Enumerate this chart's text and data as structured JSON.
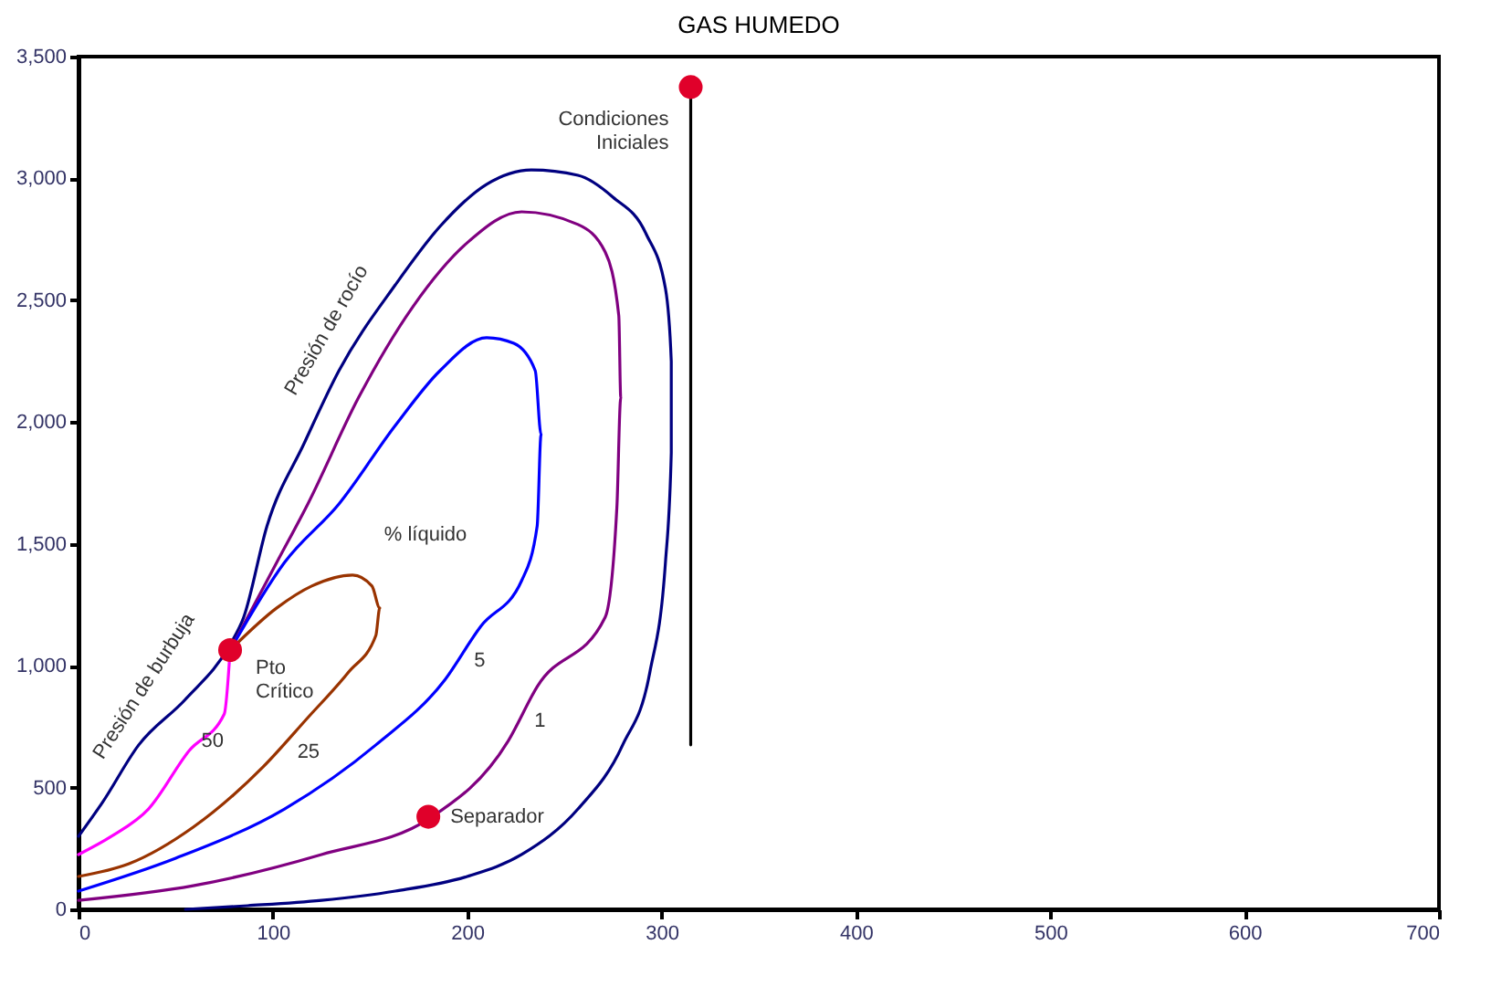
{
  "chart_data": {
    "type": "line",
    "title": "GAS HUMEDO",
    "xlim": [
      0,
      700
    ],
    "xticks": [
      0,
      100,
      200,
      300,
      400,
      500,
      600,
      700
    ],
    "ylim": [
      0,
      3500
    ],
    "yticks": [
      0,
      {
        "value": 500,
        "label": "500"
      },
      {
        "value": 1000,
        "label": "1,000"
      },
      {
        "value": 1500,
        "label": "1,500"
      },
      {
        "value": 2000,
        "label": "2,000"
      },
      {
        "value": 2500,
        "label": "2,500"
      },
      {
        "value": 3000,
        "label": "3,000"
      },
      {
        "value": 3500,
        "label": "3,500"
      }
    ],
    "grid": false,
    "line_style": "solid",
    "series": [
      {
        "type": "line",
        "color": "#000080",
        "marker": "none",
        "x": [
          0,
          12,
          31,
          55,
          78,
          85,
          97,
          116,
          134,
          163,
          186,
          210,
          233,
          257,
          275,
          292,
          302,
          305,
          305,
          302,
          294,
          280,
          257,
          228,
          200,
          163,
          125,
          87,
          55
        ],
        "values": [
          300,
          435,
          675,
          862,
          1087,
          1199,
          1574,
          1911,
          2211,
          2563,
          2803,
          2976,
          3035,
          3013,
          2923,
          2773,
          2548,
          2249,
          1874,
          1424,
          974,
          675,
          412,
          225,
          135,
          75,
          37,
          15,
          0
        ]
      },
      {
        "type": "line",
        "color": "#800080",
        "marker": "none",
        "x": [
          78,
          102,
          118,
          144,
          172,
          200,
          228,
          257,
          271,
          278,
          279,
          277,
          271,
          236,
          221,
          181,
          125,
          59,
          0
        ],
        "values": [
          1064,
          1424,
          1664,
          2099,
          2473,
          2736,
          2863,
          2811,
          2698,
          2436,
          2099,
          1649,
          1199,
          914,
          690,
          375,
          225,
          97,
          37
        ]
      },
      {
        "type": "line",
        "color": "#0000ff",
        "marker": "none",
        "x": [
          78,
          106,
          134,
          163,
          186,
          210,
          224,
          235,
          238,
          236,
          228,
          207,
          188,
          153,
          106,
          50,
          0
        ],
        "values": [
          1064,
          1424,
          1664,
          1986,
          2211,
          2346,
          2323,
          2211,
          1949,
          1574,
          1349,
          1162,
          937,
          675,
          412,
          210,
          75
        ]
      },
      {
        "type": "line",
        "color": "#993300",
        "marker": "none",
        "x": [
          78,
          102,
          120,
          141,
          151,
          155,
          153,
          139,
          118,
          95,
          59,
          26,
          0
        ],
        "values": [
          1064,
          1237,
          1327,
          1372,
          1327,
          1237,
          1124,
          974,
          787,
          585,
          337,
          187,
          135
        ]
      },
      {
        "type": "line",
        "color": "#ff00ff",
        "marker": "none",
        "x": [
          78,
          75,
          57,
          36,
          17,
          0
        ],
        "values": [
          1064,
          802,
          652,
          412,
          300,
          225
        ]
      },
      {
        "type": "line",
        "color": "#000000",
        "marker": "none",
        "x": [
          315,
          315
        ],
        "values": [
          3375,
          675
        ]
      },
      {
        "type": "scatter",
        "color": "#e0002a",
        "marker": "circle",
        "x": [
          315,
          78,
          180
        ],
        "values": [
          3375,
          1064,
          380
        ]
      }
    ],
    "annotations": [
      "Presión de burbuja",
      "Presión de rocío",
      {
        "text": "Condiciones\nIniciales",
        "x": 315,
        "y": 3375
      },
      {
        "text": "Pto\nCrítico",
        "x": 78,
        "y": 1064
      },
      {
        "text": "Separador",
        "x": 180,
        "y": 380
      },
      "% líquido",
      {
        "text": "50",
        "x": 69,
        "y": 690
      },
      {
        "text": "25",
        "x": 106,
        "y": 675
      },
      {
        "text": "5",
        "x": 197,
        "y": 1049
      },
      {
        "text": "1",
        "x": 228,
        "y": 802
      }
    ]
  }
}
